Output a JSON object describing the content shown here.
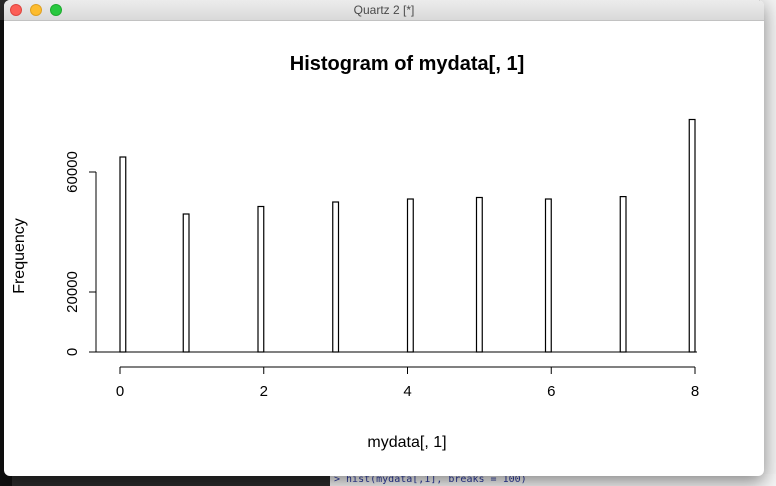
{
  "window": {
    "title": "Quartz 2 [*]"
  },
  "background": {
    "peek_text": "ns",
    "console_line": "> hist(mydata[,1], breaks = 100)"
  },
  "chart_data": {
    "type": "bar",
    "title": "Histogram of mydata[, 1]",
    "xlabel": "mydata[, 1]",
    "ylabel": "Frequency",
    "xlim": [
      0,
      8
    ],
    "ylim": [
      0,
      80000
    ],
    "x_ticks": [
      "0",
      "2",
      "4",
      "6",
      "8"
    ],
    "y_ticks": [
      "0",
      "20000",
      "60000"
    ],
    "bin_width": 0.08,
    "bins": [
      {
        "x0": 0.0,
        "x1": 0.08,
        "count": 65000
      },
      {
        "x0": 0.88,
        "x1": 0.96,
        "count": 46000
      },
      {
        "x0": 1.92,
        "x1": 2.0,
        "count": 48500
      },
      {
        "x0": 2.96,
        "x1": 3.04,
        "count": 50000
      },
      {
        "x0": 4.0,
        "x1": 4.08,
        "count": 51000
      },
      {
        "x0": 4.96,
        "x1": 5.04,
        "count": 51500
      },
      {
        "x0": 5.92,
        "x1": 6.0,
        "count": 51000
      },
      {
        "x0": 6.96,
        "x1": 7.04,
        "count": 51800
      },
      {
        "x0": 7.92,
        "x1": 8.0,
        "count": 77500
      }
    ]
  }
}
